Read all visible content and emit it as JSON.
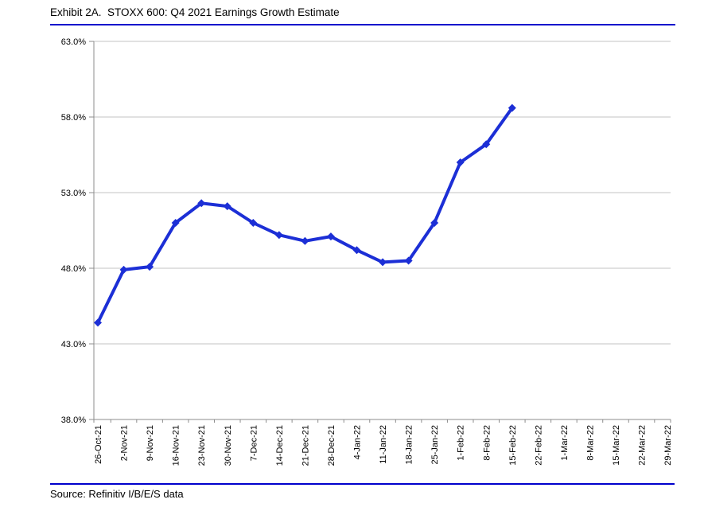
{
  "header": {
    "title": "Exhibit 2A.  STOXX 600: Q4 2021 Earnings Growth Estimate"
  },
  "footer": {
    "source": "Source: Refinitiv I/B/E/S data"
  },
  "colors": {
    "series": "#1c2fd6",
    "rule": "#0000cc",
    "gridline": "#c3c3c3",
    "axis": "#8c8c8c",
    "text": "#000000"
  },
  "chart_data": {
    "type": "line",
    "title": "STOXX 600: Q4 2021 Earnings Growth Estimate",
    "categories": [
      "26-Oct-21",
      "2-Nov-21",
      "9-Nov-21",
      "16-Nov-21",
      "23-Nov-21",
      "30-Nov-21",
      "7-Dec-21",
      "14-Dec-21",
      "21-Dec-21",
      "28-Dec-21",
      "4-Jan-22",
      "11-Jan-22",
      "18-Jan-22",
      "25-Jan-22",
      "1-Feb-22",
      "8-Feb-22",
      "15-Feb-22",
      "22-Feb-22",
      "1-Mar-22",
      "8-Mar-22",
      "15-Mar-22",
      "22-Mar-22",
      "29-Mar-22"
    ],
    "series": [
      {
        "values": [
          44.4,
          47.9,
          48.1,
          51.0,
          52.3,
          52.1,
          51.0,
          50.2,
          49.8,
          50.1,
          49.2,
          48.4,
          48.5,
          51.0,
          55.0,
          56.2,
          58.6,
          null,
          null,
          null,
          null,
          null,
          null
        ]
      }
    ],
    "xlabel": "",
    "ylabel": "",
    "ylim": [
      38.0,
      63.0
    ],
    "ytick_step": 5.0,
    "ytick_format": "0.0%",
    "grid": "horizontal",
    "legend": "none",
    "marker": "diamond"
  }
}
